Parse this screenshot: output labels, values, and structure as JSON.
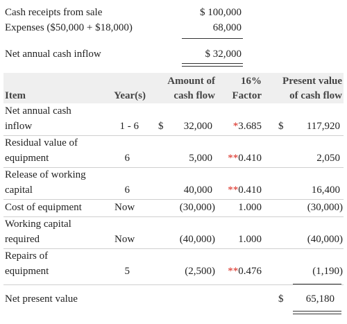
{
  "summary": {
    "rows": [
      {
        "label": "Cash receipts from sale",
        "value": "$ 100,000"
      },
      {
        "label": "Expenses ($50,000 + $18,000)",
        "value": "68,000"
      }
    ],
    "net": {
      "label": "Net annual cash inflow",
      "value": "$  32,000"
    }
  },
  "table": {
    "headers": {
      "item": "Item",
      "year": "Year(s)",
      "amount_1": "Amount of",
      "amount_2": "cash flow",
      "factor_1": "16%",
      "factor_2": "Factor",
      "pv_1": "Present value",
      "pv_2": "of cash flow"
    },
    "rows": [
      {
        "item_1": "Net annual cash",
        "item_2": "inflow",
        "year": "1 - 6",
        "amount_dollar": "$",
        "amount": "32,000",
        "factor_mark": "*",
        "factor": "3.685",
        "pv_dollar": "$",
        "pv": "117,920"
      },
      {
        "item_1": "Residual value of",
        "item_2": "equipment",
        "year": "6",
        "amount": "5,000",
        "factor_mark": "**",
        "factor": "0.410",
        "pv": "2,050"
      },
      {
        "item_1": "Release of working",
        "item_2": "capital",
        "year": "6",
        "amount": "40,000",
        "factor_mark": "**",
        "factor": "0.410",
        "pv": "16,400"
      },
      {
        "item_1": "Cost of equipment",
        "year": "Now",
        "amount": "(30,000)",
        "factor": "1.000",
        "pv": "(30,000)"
      },
      {
        "item_1": "Working capital",
        "item_2": "required",
        "year": "Now",
        "amount": "(40,000)",
        "factor": "1.000",
        "pv": "(40,000)"
      },
      {
        "item_1": "Repairs of",
        "item_2": "equipment",
        "year": "5",
        "amount": "(2,500)",
        "factor_mark": "**",
        "factor": "0.476",
        "pv": "(1,190)"
      }
    ],
    "total": {
      "label": "Net present value",
      "dollar": "$",
      "value": "65,180"
    }
  }
}
